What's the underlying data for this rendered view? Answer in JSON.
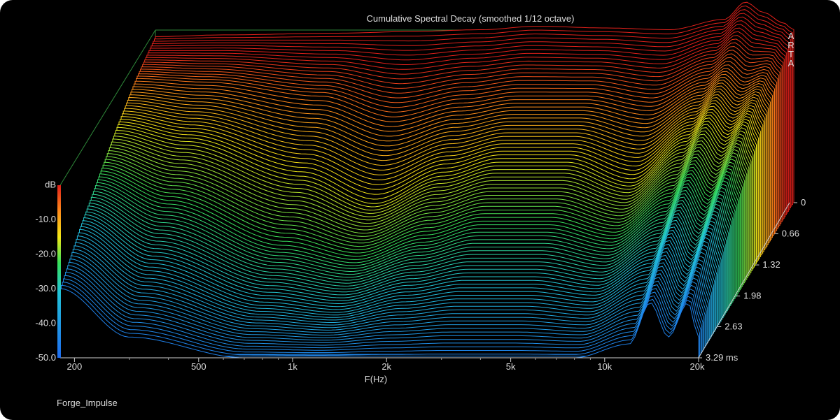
{
  "chart_data": {
    "type": "waterfall-3d",
    "title": "Cumulative Spectral Decay (smoothed 1/12 octave)",
    "xlabel": "F(Hz)",
    "ylabel": "dB",
    "zlabel": "ms",
    "x_scale": "log",
    "xlim": [
      180,
      20000
    ],
    "ylim": [
      -50,
      0
    ],
    "zlim": [
      0,
      3.29
    ],
    "x_ticks": [
      "200",
      "500",
      "1k",
      "2k",
      "5k",
      "10k",
      "20k"
    ],
    "x_tick_values": [
      200,
      500,
      1000,
      2000,
      5000,
      10000,
      20000
    ],
    "y_ticks": [
      "dB",
      "-10.0",
      "-20.0",
      "-30.0",
      "-40.0",
      "-50.0"
    ],
    "y_tick_values": [
      0,
      -10,
      -20,
      -30,
      -40,
      -50
    ],
    "z_ticks": [
      "0",
      "0.66",
      "1.32",
      "1.98",
      "2.63",
      "3.29 ms"
    ],
    "z_tick_values": [
      0,
      0.66,
      1.32,
      1.98,
      2.63,
      3.29
    ],
    "side_label": "ARTA",
    "colors": {
      "high": "#ff2a1a",
      "mid": "#f4e817",
      "low": "#1e6cf0",
      "frame": "#2f8a3a"
    },
    "series": [
      {
        "time_ms": 0,
        "frequency_hz": [
          180,
          300,
          700,
          1200,
          2000,
          3000,
          5000,
          8000,
          12000,
          14000,
          16000,
          18500,
          20000
        ],
        "level_db": [
          -2,
          -1.5,
          -1,
          -0.5,
          0,
          1,
          0.5,
          0,
          3,
          8,
          5,
          2,
          0
        ]
      },
      {
        "time_ms": 0.66,
        "frequency_hz": [
          180,
          300,
          700,
          1200,
          2000,
          3000,
          5000,
          8000,
          12000,
          14000,
          16000,
          18500,
          20000
        ],
        "level_db": [
          -5,
          -6,
          -10,
          -16,
          -12,
          -10,
          -10,
          -13,
          -6,
          -2,
          -6,
          -4,
          -8
        ]
      },
      {
        "time_ms": 1.32,
        "frequency_hz": [
          180,
          300,
          700,
          1200,
          2000,
          3000,
          5000,
          8000,
          12000,
          14000,
          16000,
          18500,
          20000
        ],
        "level_db": [
          -10,
          -14,
          -24,
          -32,
          -24,
          -20,
          -20,
          -26,
          -14,
          -8,
          -14,
          -9,
          -16
        ]
      },
      {
        "time_ms": 1.98,
        "frequency_hz": [
          180,
          300,
          700,
          1200,
          2000,
          3000,
          5000,
          8000,
          12000,
          14000,
          16000,
          18500,
          20000
        ],
        "level_db": [
          -16,
          -24,
          -36,
          -40,
          -34,
          -30,
          -30,
          -34,
          -24,
          -16,
          -24,
          -16,
          -24
        ]
      },
      {
        "time_ms": 2.63,
        "frequency_hz": [
          180,
          300,
          700,
          1200,
          2000,
          3000,
          5000,
          8000,
          12000,
          14000,
          16000,
          18500,
          20000
        ],
        "level_db": [
          -22,
          -34,
          -44,
          -46,
          -42,
          -40,
          -40,
          -42,
          -34,
          -24,
          -34,
          -24,
          -34
        ]
      },
      {
        "time_ms": 3.29,
        "frequency_hz": [
          180,
          300,
          700,
          1200,
          2000,
          3000,
          5000,
          8000,
          12000,
          14000,
          16000,
          18500,
          20000
        ],
        "level_db": [
          -30,
          -44,
          -50,
          -50,
          -50,
          -50,
          -50,
          -50,
          -46,
          -34,
          -44,
          -34,
          -44
        ]
      }
    ]
  },
  "footer": {
    "file_name": "Forge_Impulse"
  }
}
